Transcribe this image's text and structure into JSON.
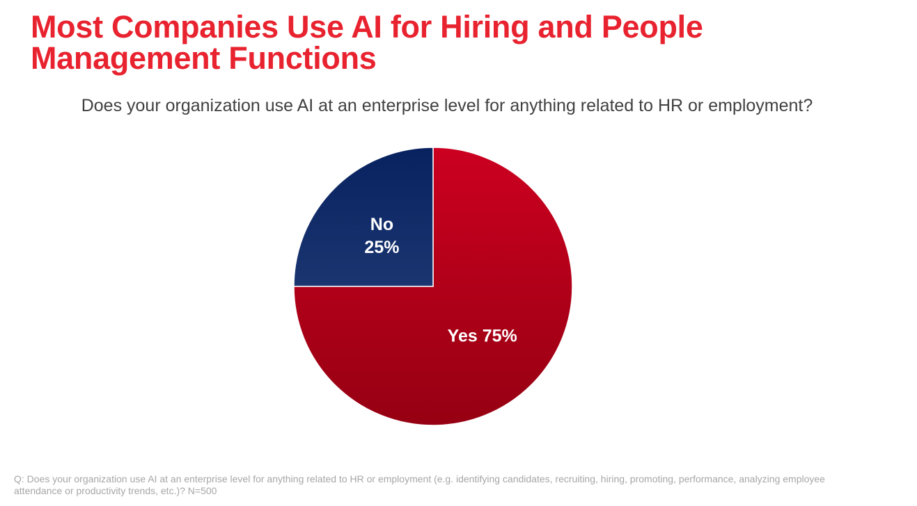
{
  "title": "Most Companies Use AI for Hiring and People Management Functions",
  "footnote": "Q: Does your organization use AI at an enterprise level for anything related to HR or employment (e.g. identifying candidates, recruiting, hiring, promoting, performance, analyzing employee attendance or productivity trends, etc.)? N=500",
  "chart_data": {
    "type": "pie",
    "title": "Does your organization use AI  at an enterprise level for anything related to HR or employment?",
    "categories": [
      "Yes",
      "No"
    ],
    "values": [
      75,
      25
    ],
    "labels": [
      "Yes 75%",
      "No 25%"
    ],
    "label_lines": [
      [
        "Yes 75%"
      ],
      [
        "No",
        "25%"
      ]
    ],
    "colors": [
      "#c0001a",
      "#0f2a5e"
    ],
    "start": "12 o'clock",
    "direction": "clockwise",
    "legend": "none"
  }
}
